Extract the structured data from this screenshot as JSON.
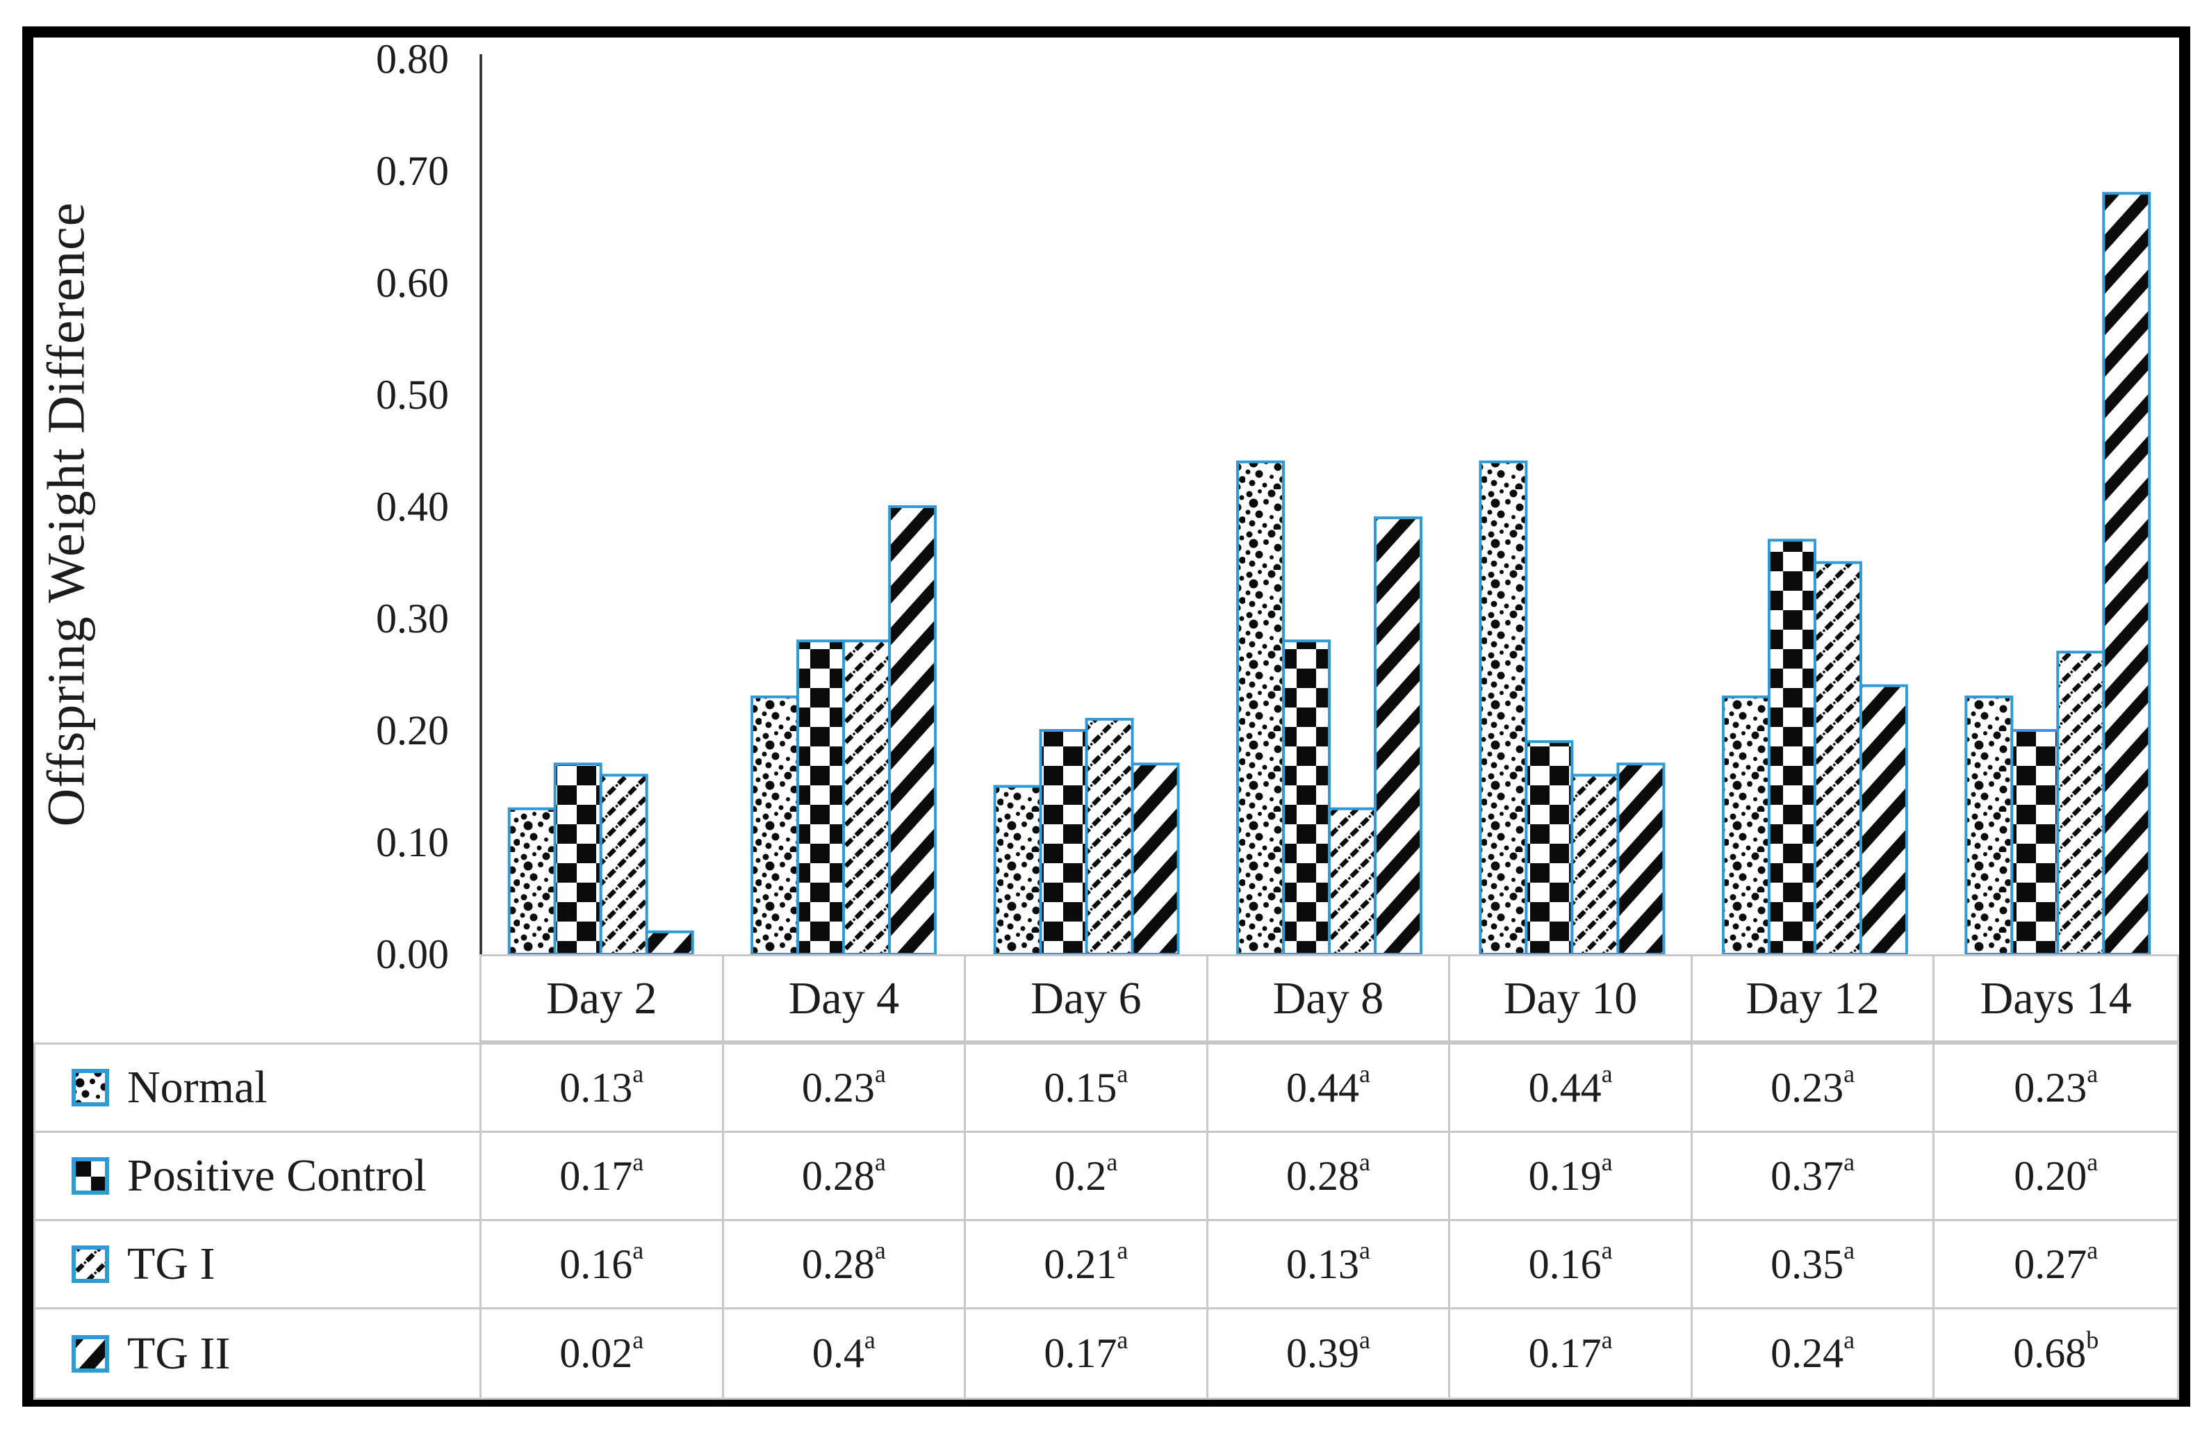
{
  "chart_data": {
    "type": "bar",
    "title": "",
    "xlabel": "",
    "ylabel": "Offspring Weight Difference",
    "ylim": [
      0,
      0.8
    ],
    "grid": false,
    "legend_position": "table-left-column",
    "y_ticks": [
      {
        "value": 0.8,
        "label": "0.80"
      },
      {
        "value": 0.7,
        "label": "0.70"
      },
      {
        "value": 0.6,
        "label": "0.60"
      },
      {
        "value": 0.5,
        "label": "0.50"
      },
      {
        "value": 0.4,
        "label": "0.40"
      },
      {
        "value": 0.3,
        "label": "0.30"
      },
      {
        "value": 0.2,
        "label": "0.20"
      },
      {
        "value": 0.1,
        "label": "0.10"
      },
      {
        "value": 0.0,
        "label": "0.00"
      }
    ],
    "categories": [
      "Day 2",
      "Day 4",
      "Day 6",
      "Day 8",
      "Day 10",
      "Day 12",
      "Days 14"
    ],
    "series": [
      {
        "name": "Normal",
        "pattern": "dots",
        "values": [
          0.13,
          0.23,
          0.15,
          0.44,
          0.44,
          0.23,
          0.23
        ],
        "cell_labels": [
          {
            "text": "0.13",
            "sup": "a"
          },
          {
            "text": "0.23",
            "sup": "a"
          },
          {
            "text": "0.15",
            "sup": "a"
          },
          {
            "text": "0.44",
            "sup": "a"
          },
          {
            "text": "0.44",
            "sup": "a"
          },
          {
            "text": "0.23",
            "sup": "a"
          },
          {
            "text": "0.23",
            "sup": "a"
          }
        ]
      },
      {
        "name": "Positive Control",
        "pattern": "checker",
        "values": [
          0.17,
          0.28,
          0.2,
          0.28,
          0.19,
          0.37,
          0.2
        ],
        "cell_labels": [
          {
            "text": "0.17",
            "sup": "a"
          },
          {
            "text": "0.28",
            "sup": "a"
          },
          {
            "text": "0.2",
            "sup": "a"
          },
          {
            "text": "0.28",
            "sup": "a"
          },
          {
            "text": "0.19",
            "sup": "a"
          },
          {
            "text": "0.37",
            "sup": "a"
          },
          {
            "text": "0.20",
            "sup": "a"
          }
        ]
      },
      {
        "name": "TG I",
        "pattern": "thin-diagonal",
        "values": [
          0.16,
          0.28,
          0.21,
          0.13,
          0.16,
          0.35,
          0.27
        ],
        "cell_labels": [
          {
            "text": "0.16",
            "sup": "a"
          },
          {
            "text": "0.28",
            "sup": "a"
          },
          {
            "text": "0.21",
            "sup": "a"
          },
          {
            "text": "0.13",
            "sup": "a"
          },
          {
            "text": "0.16",
            "sup": "a"
          },
          {
            "text": "0.35",
            "sup": "a"
          },
          {
            "text": "0.27",
            "sup": "a"
          }
        ]
      },
      {
        "name": "TG II",
        "pattern": "bold-diagonal",
        "values": [
          0.02,
          0.4,
          0.17,
          0.39,
          0.17,
          0.24,
          0.68
        ],
        "cell_labels": [
          {
            "text": "0.02",
            "sup": "a"
          },
          {
            "text": "0.4",
            "sup": "a"
          },
          {
            "text": "0.17",
            "sup": "a"
          },
          {
            "text": "0.39",
            "sup": "a"
          },
          {
            "text": "0.17",
            "sup": "a"
          },
          {
            "text": "0.24",
            "sup": "a"
          },
          {
            "text": "0.68",
            "sup": "b"
          }
        ]
      }
    ]
  },
  "colors": {
    "bar_outline": "#2F9BD6",
    "pattern_ink": "#0b0b0b",
    "table_line": "#c8c8c8",
    "axis_line": "#262626",
    "text": "#1c1c1c",
    "frame": "#000000",
    "background": "#ffffff"
  }
}
